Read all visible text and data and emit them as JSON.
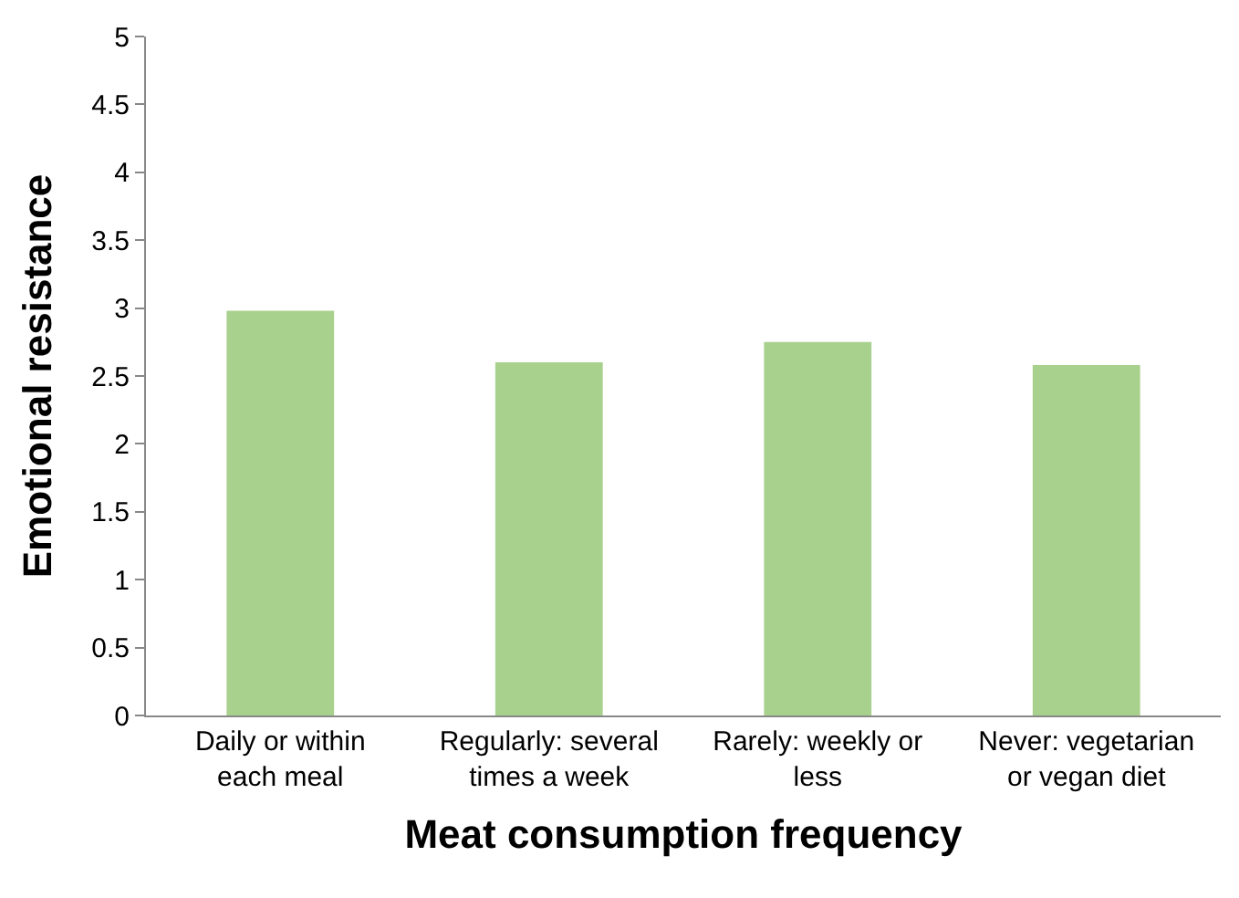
{
  "chart_data": {
    "type": "bar",
    "xlabel": "Meat consumption frequency",
    "ylabel": "Emotional resistance",
    "categories": [
      "Daily or within each meal",
      "Regularly: several times a week",
      "Rarely: weekly or less",
      "Never: vegetarian or vegan diet"
    ],
    "values": [
      2.98,
      2.6,
      2.75,
      2.58
    ],
    "color": "#a9d18e",
    "ylim": [
      0,
      5
    ],
    "yticks": [
      0,
      0.5,
      1,
      1.5,
      2,
      2.5,
      3,
      3.5,
      4,
      4.5,
      5
    ]
  }
}
